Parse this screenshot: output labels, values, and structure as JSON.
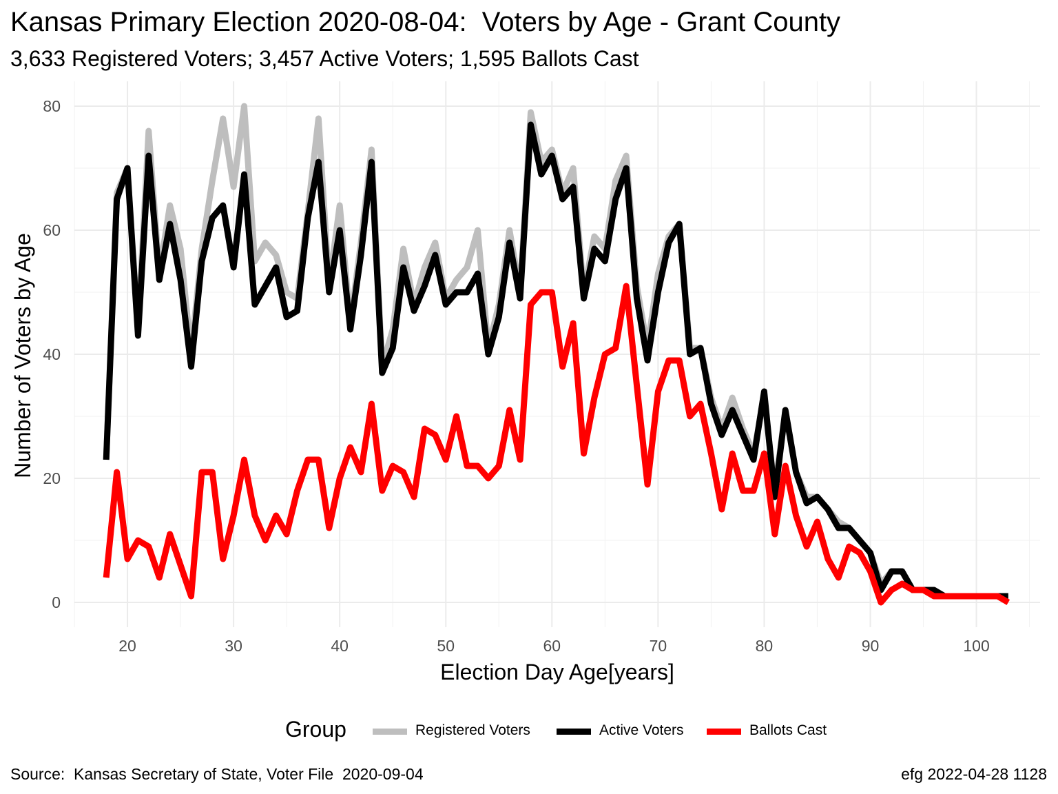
{
  "title": "Kansas Primary Election 2020-08-04:  Voters by Age - Grant County",
  "subtitle": "3,633 Registered Voters; 3,457 Active Voters; 1,595 Ballots Cast",
  "caption_left": "Source:  Kansas Secretary of State, Voter File  2020-09-04",
  "caption_right": "efg 2022-04-28 1128",
  "legend": {
    "title": "Group",
    "items": [
      {
        "label": "Registered Voters",
        "color": "#bebebe"
      },
      {
        "label": "Active Voters",
        "color": "#000000"
      },
      {
        "label": "Ballots Cast",
        "color": "#ff0000"
      }
    ]
  },
  "chart_data": {
    "type": "line",
    "xlabel": "Election Day Age[years]",
    "ylabel": "Number of Voters by Age",
    "xlim": [
      15,
      106
    ],
    "ylim": [
      -4,
      84
    ],
    "xticks": [
      20,
      30,
      40,
      50,
      60,
      70,
      80,
      90,
      100
    ],
    "yticks": [
      0,
      20,
      40,
      60,
      80
    ],
    "grid": true,
    "legend_position": "bottom",
    "x": [
      18,
      19,
      20,
      21,
      22,
      23,
      24,
      25,
      26,
      27,
      28,
      29,
      30,
      31,
      32,
      33,
      34,
      35,
      36,
      37,
      38,
      39,
      40,
      41,
      42,
      43,
      44,
      45,
      46,
      47,
      48,
      49,
      50,
      51,
      52,
      53,
      54,
      55,
      56,
      57,
      58,
      59,
      60,
      61,
      62,
      63,
      64,
      65,
      66,
      67,
      68,
      69,
      70,
      71,
      72,
      73,
      74,
      75,
      76,
      77,
      78,
      79,
      80,
      81,
      82,
      83,
      84,
      85,
      86,
      87,
      88,
      89,
      90,
      91,
      92,
      93,
      94,
      95,
      96,
      97,
      98,
      99,
      100,
      101,
      102,
      103
    ],
    "series": [
      {
        "name": "Registered Voters",
        "color": "#bebebe",
        "values": [
          23,
          66,
          70,
          44,
          76,
          53,
          64,
          57,
          40,
          57,
          68,
          78,
          67,
          80,
          55,
          58,
          56,
          50,
          49,
          63,
          78,
          51,
          64,
          45,
          58,
          73,
          38,
          44,
          57,
          48,
          54,
          58,
          49,
          52,
          54,
          60,
          41,
          48,
          60,
          50,
          79,
          71,
          73,
          66,
          70,
          50,
          59,
          57,
          68,
          72,
          51,
          41,
          53,
          59,
          61,
          41,
          41,
          33,
          28,
          33,
          28,
          24,
          33,
          18,
          31,
          21,
          17,
          17,
          15,
          13,
          12,
          10,
          8,
          3,
          5,
          5,
          2,
          2,
          2,
          1,
          1,
          1,
          1,
          1,
          1,
          1
        ]
      },
      {
        "name": "Active Voters",
        "color": "#000000",
        "values": [
          23,
          65,
          70,
          43,
          72,
          52,
          61,
          52,
          38,
          55,
          62,
          64,
          54,
          69,
          48,
          51,
          54,
          46,
          47,
          62,
          71,
          50,
          60,
          44,
          56,
          71,
          37,
          41,
          54,
          47,
          51,
          56,
          48,
          50,
          50,
          53,
          40,
          46,
          58,
          49,
          77,
          69,
          72,
          65,
          67,
          49,
          57,
          55,
          65,
          70,
          49,
          39,
          50,
          58,
          61,
          40,
          41,
          32,
          27,
          31,
          27,
          23,
          34,
          17,
          31,
          21,
          16,
          17,
          15,
          12,
          12,
          10,
          8,
          2,
          5,
          5,
          2,
          2,
          2,
          1,
          1,
          1,
          1,
          1,
          1,
          1
        ]
      },
      {
        "name": "Ballots Cast",
        "color": "#ff0000",
        "values": [
          4,
          21,
          7,
          10,
          9,
          4,
          11,
          6,
          1,
          21,
          21,
          7,
          14,
          23,
          14,
          10,
          14,
          11,
          18,
          23,
          23,
          12,
          20,
          25,
          21,
          32,
          18,
          22,
          21,
          17,
          28,
          27,
          23,
          30,
          22,
          22,
          20,
          22,
          31,
          23,
          48,
          50,
          50,
          38,
          45,
          24,
          33,
          40,
          41,
          51,
          35,
          19,
          34,
          39,
          39,
          30,
          32,
          24,
          15,
          24,
          18,
          18,
          24,
          11,
          22,
          14,
          9,
          13,
          7,
          4,
          9,
          8,
          5,
          0,
          2,
          3,
          2,
          2,
          1,
          1,
          1,
          1,
          1,
          1,
          1,
          0
        ]
      }
    ]
  }
}
